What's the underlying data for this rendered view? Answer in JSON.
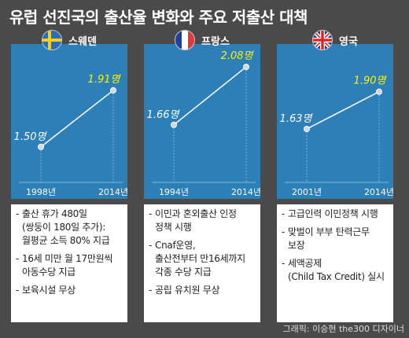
{
  "title": "유럽 선진국의 출산율 변화와 주요 저출산 대책",
  "credit": "그래픽: 이승현 the300 디자이너",
  "colors": {
    "panel_bg": "#2d7fb8",
    "grid": "#7fb4d9",
    "line": "#ffffff",
    "latest_label": "#fff200",
    "first_label": "#ffffff"
  },
  "chart_data": [
    {
      "type": "line",
      "country": "스웨덴",
      "flag": "sweden-flag",
      "x": [
        "1998년",
        "2014년"
      ],
      "values": [
        1.5,
        1.91
      ],
      "point_labels": [
        "1.50명",
        "1.91명"
      ]
    },
    {
      "type": "line",
      "country": "프랑스",
      "flag": "france-flag",
      "x": [
        "1994년",
        "2014년"
      ],
      "values": [
        1.66,
        2.08
      ],
      "point_labels": [
        "1.66명",
        "2.08명"
      ]
    },
    {
      "type": "line",
      "country": "영국",
      "flag": "uk-flag",
      "x": [
        "2001년",
        "2014년"
      ],
      "values": [
        1.63,
        1.9
      ],
      "point_labels": [
        "1.63명",
        "1.90명"
      ]
    }
  ],
  "policies": [
    {
      "items": [
        [
          "출산 휴가 480일",
          "(쌍둥이 180일 추가):",
          "월평균 소득 80% 지급"
        ],
        [
          "16세 미만 월 17만원씩",
          "아동수당 지급"
        ],
        [
          "보육시설 무상"
        ]
      ]
    },
    {
      "items": [
        [
          "이민과 혼외출산 인정",
          "정책 시행"
        ],
        [
          "Cnaf운영,",
          "출산전부터 만16세까지",
          "각종 수당 지급"
        ],
        [
          "공립 유치원 무상"
        ]
      ]
    },
    {
      "items": [
        [
          "고급인력 이민정책 시행"
        ],
        [
          "맞벌이 부부 탄력근무",
          "보장"
        ],
        [
          "세액공제",
          "(Child Tax Credit) 실시"
        ]
      ]
    }
  ]
}
